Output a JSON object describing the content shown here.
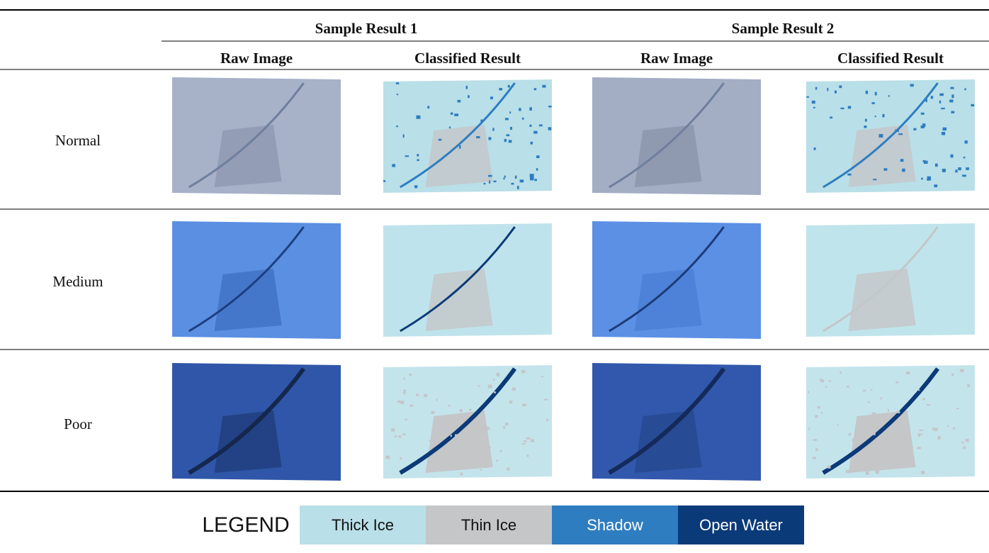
{
  "table": {
    "group_headers": [
      "Sample Result 1",
      "Sample Result 2"
    ],
    "column_headers": [
      "Raw Image",
      "Classified Result",
      "Raw Image",
      "Classified Result"
    ],
    "row_labels": [
      "Normal",
      "Medium",
      "Poor"
    ]
  },
  "legend": {
    "title": "LEGEND",
    "items": [
      "Thick Ice",
      "Thin Ice",
      "Shadow",
      "Open Water"
    ]
  }
}
